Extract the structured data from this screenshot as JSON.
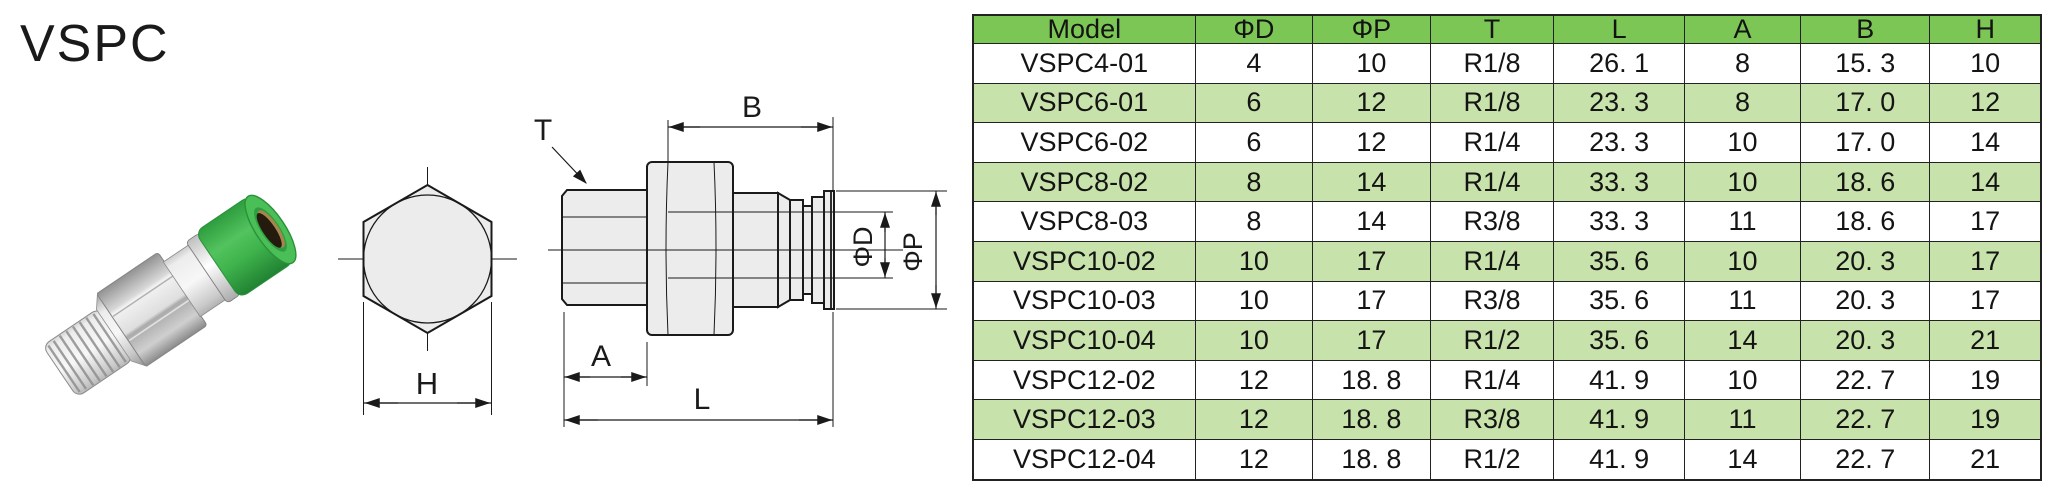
{
  "page": {
    "title": "VSPC"
  },
  "drawing_labels": {
    "thread": "T",
    "b": "B",
    "phi_d": "ΦD",
    "phi_p": "ΦP",
    "a": "A",
    "l": "L",
    "h": "H"
  },
  "table": {
    "headers": [
      "Model",
      "ΦD",
      "ΦP",
      "T",
      "L",
      "A",
      "B",
      "H"
    ],
    "rows": [
      [
        "VSPC4-01",
        "4",
        "10",
        "R1/8",
        "26. 1",
        "8",
        "15. 3",
        "10"
      ],
      [
        "VSPC6-01",
        "6",
        "12",
        "R1/8",
        "23. 3",
        "8",
        "17. 0",
        "12"
      ],
      [
        "VSPC6-02",
        "6",
        "12",
        "R1/4",
        "23. 3",
        "10",
        "17. 0",
        "14"
      ],
      [
        "VSPC8-02",
        "8",
        "14",
        "R1/4",
        "33. 3",
        "10",
        "18. 6",
        "14"
      ],
      [
        "VSPC8-03",
        "8",
        "14",
        "R3/8",
        "33. 3",
        "11",
        "18. 6",
        "17"
      ],
      [
        "VSPC10-02",
        "10",
        "17",
        "R1/4",
        "35. 6",
        "10",
        "20. 3",
        "17"
      ],
      [
        "VSPC10-03",
        "10",
        "17",
        "R3/8",
        "35. 6",
        "11",
        "20. 3",
        "17"
      ],
      [
        "VSPC10-04",
        "10",
        "17",
        "R1/2",
        "35. 6",
        "14",
        "20. 3",
        "21"
      ],
      [
        "VSPC12-02",
        "12",
        "18. 8",
        "R1/4",
        "41. 9",
        "10",
        "22. 7",
        "19"
      ],
      [
        "VSPC12-03",
        "12",
        "18. 8",
        "R3/8",
        "41. 9",
        "11",
        "22. 7",
        "19"
      ],
      [
        "VSPC12-04",
        "12",
        "18. 8",
        "R1/2",
        "41. 9",
        "14",
        "22. 7",
        "21"
      ]
    ]
  },
  "colors": {
    "table_header_green": "#7bc655",
    "table_row_green": "#c7e2aa",
    "table_row_white": "#ffffff",
    "table_border": "#222222",
    "drawing_line": "#1a1a1a",
    "drawing_fill": "#ececec",
    "collar_green": "#3cb44b",
    "metal_gray": "#d6d6d6"
  }
}
